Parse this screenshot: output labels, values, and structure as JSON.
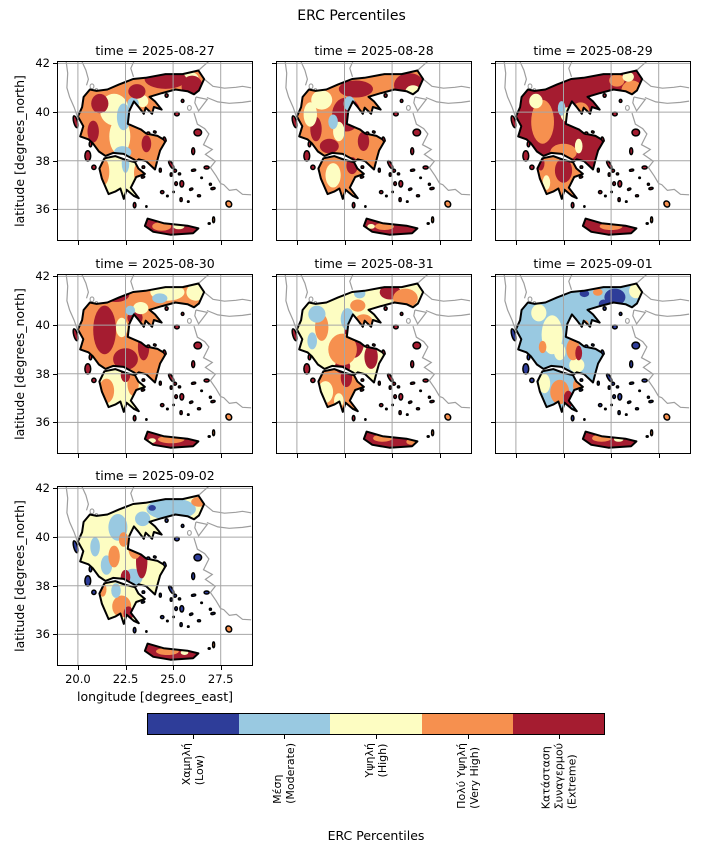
{
  "title": "ERC Percentiles",
  "chart_data": {
    "type": "heatmap",
    "suptitle": "ERC Percentiles",
    "xlabel": "longitude [degrees_east]",
    "ylabel": "latitude [degrees_north]",
    "xticks": [
      20.0,
      22.5,
      25.0,
      27.5
    ],
    "yticks": [
      42,
      40,
      38,
      36
    ],
    "xtick_labels": [
      "20.0",
      "22.5",
      "25.0",
      "27.5"
    ],
    "ytick_labels": [
      "42",
      "40",
      "38",
      "36"
    ],
    "xlim": [
      18.9,
      29.2
    ],
    "ylim": [
      34.7,
      42.1
    ],
    "grid": true,
    "colorbar_label": "ERC Percentiles",
    "categories": [
      {
        "code": "L",
        "label": "Χαμηλή\n(Low)",
        "english": "Low",
        "color": "#2e3d99"
      },
      {
        "code": "M",
        "label": "Μέση\n(Moderate)",
        "english": "Moderate",
        "color": "#99c9e1"
      },
      {
        "code": "H",
        "label": "Υψηλή\n(High)",
        "english": "High",
        "color": "#fdfdc2"
      },
      {
        "code": "VH",
        "label": "Πολύ Υψηλή\n(Very High)",
        "english": "Very High",
        "color": "#f6904f"
      },
      {
        "code": "EX",
        "label": "Κατάσταση\nΣυναγερμού\n(Extreme)",
        "english": "Extreme",
        "color": "#a51c30"
      }
    ],
    "facets": [
      {
        "date": "2025-08-27",
        "title": "time = 2025-08-27",
        "base": "VH",
        "pel": "H",
        "crete": "EX",
        "islands": "EX",
        "patches": [
          [
            "H",
            21.9,
            40.1,
            0.75,
            0.65
          ],
          [
            "H",
            22.2,
            39.0,
            0.55,
            0.75
          ],
          [
            "H",
            25.9,
            41.35,
            0.45,
            0.3
          ],
          [
            "H",
            23.4,
            40.45,
            0.3,
            0.25
          ],
          [
            "M",
            22.4,
            39.8,
            0.35,
            0.55
          ],
          [
            "M",
            22.9,
            40.35,
            0.3,
            0.25
          ],
          [
            "M",
            22.35,
            38.35,
            0.45,
            0.25
          ],
          [
            "EX",
            21.15,
            40.35,
            0.45,
            0.4
          ],
          [
            "EX",
            24.6,
            41.35,
            1.1,
            0.4
          ],
          [
            "EX",
            26.0,
            41.05,
            0.55,
            0.45
          ],
          [
            "EX",
            23.1,
            40.85,
            0.45,
            0.3
          ],
          [
            "EX",
            20.8,
            39.2,
            0.3,
            0.45
          ],
          [
            "EX",
            23.6,
            38.7,
            0.25,
            0.35
          ],
          [
            "VH",
            21.35,
            37.55,
            0.3,
            0.55
          ],
          [
            "VH",
            23.2,
            37.5,
            0.25,
            0.45
          ],
          [
            "M",
            22.5,
            37.9,
            0.2,
            0.4
          ],
          [
            "VH",
            24.4,
            35.3,
            0.5,
            0.18
          ],
          [
            "H",
            25.3,
            35.3,
            0.3,
            0.12
          ]
        ]
      },
      {
        "date": "2025-08-28",
        "title": "time = 2025-08-28",
        "base": "VH",
        "pel": "VH",
        "crete": "EX",
        "islands": "EX",
        "patches": [
          [
            "EX",
            22.6,
            39.9,
            0.75,
            0.7
          ],
          [
            "EX",
            23.1,
            40.95,
            0.9,
            0.35
          ],
          [
            "EX",
            25.9,
            41.1,
            0.8,
            0.5
          ],
          [
            "EX",
            21.0,
            39.3,
            0.3,
            0.5
          ],
          [
            "EX",
            21.7,
            38.6,
            0.5,
            0.3
          ],
          [
            "EX",
            23.5,
            38.8,
            0.3,
            0.4
          ],
          [
            "H",
            21.3,
            40.5,
            0.55,
            0.4
          ],
          [
            "H",
            20.7,
            39.9,
            0.35,
            0.5
          ],
          [
            "H",
            26.1,
            40.85,
            0.4,
            0.25
          ],
          [
            "H",
            22.2,
            39.2,
            0.3,
            0.4
          ],
          [
            "M",
            22.75,
            40.35,
            0.3,
            0.3
          ],
          [
            "M",
            21.9,
            39.6,
            0.25,
            0.3
          ],
          [
            "H",
            21.9,
            37.4,
            0.4,
            0.5
          ],
          [
            "EX",
            22.9,
            37.8,
            0.3,
            0.35
          ],
          [
            "VH",
            24.6,
            35.3,
            0.5,
            0.15
          ],
          [
            "H",
            23.9,
            35.3,
            0.2,
            0.1
          ]
        ]
      },
      {
        "date": "2025-08-29",
        "title": "time = 2025-08-29",
        "base": "EX",
        "pel": "VH",
        "crete": "EX",
        "islands": "EX",
        "patches": [
          [
            "VH",
            21.4,
            39.6,
            0.6,
            0.9
          ],
          [
            "VH",
            22.5,
            38.35,
            0.7,
            0.35
          ],
          [
            "VH",
            26.1,
            40.9,
            0.55,
            0.4
          ],
          [
            "VH",
            23.4,
            40.05,
            0.45,
            0.35
          ],
          [
            "VH",
            25.3,
            41.3,
            0.4,
            0.25
          ],
          [
            "H",
            21.05,
            40.45,
            0.35,
            0.3
          ],
          [
            "H",
            22.7,
            39.9,
            0.35,
            0.3
          ],
          [
            "H",
            25.9,
            41.45,
            0.3,
            0.2
          ],
          [
            "H",
            23.3,
            38.6,
            0.2,
            0.3
          ],
          [
            "M",
            22.4,
            40.15,
            0.2,
            0.3
          ],
          [
            "EX",
            22.5,
            37.6,
            0.45,
            0.5
          ],
          [
            "EX",
            21.3,
            37.9,
            0.2,
            0.3
          ],
          [
            "H",
            21.6,
            37.1,
            0.2,
            0.3
          ],
          [
            "VH",
            25.0,
            35.3,
            0.6,
            0.15
          ]
        ]
      },
      {
        "date": "2025-08-30",
        "title": "time = 2025-08-30",
        "base": "VH",
        "pel": "H",
        "crete": "EX",
        "islands": "EX",
        "patches": [
          [
            "EX",
            21.4,
            39.8,
            0.6,
            1.0
          ],
          [
            "EX",
            22.5,
            38.6,
            0.65,
            0.45
          ],
          [
            "EX",
            22.0,
            41.25,
            0.7,
            0.3
          ],
          [
            "EX",
            23.45,
            39.1,
            0.3,
            0.55
          ],
          [
            "EX",
            23.0,
            40.3,
            0.4,
            0.3
          ],
          [
            "H",
            24.7,
            41.35,
            0.9,
            0.35
          ],
          [
            "H",
            26.2,
            41.35,
            0.5,
            0.35
          ],
          [
            "H",
            23.3,
            40.7,
            0.4,
            0.25
          ],
          [
            "H",
            22.3,
            39.9,
            0.3,
            0.4
          ],
          [
            "M",
            24.3,
            41.1,
            0.4,
            0.2
          ],
          [
            "M",
            22.75,
            40.6,
            0.25,
            0.2
          ],
          [
            "VH",
            21.5,
            37.3,
            0.4,
            0.5
          ],
          [
            "VH",
            22.9,
            37.6,
            0.3,
            0.5
          ],
          [
            "EX",
            22.5,
            37.95,
            0.25,
            0.3
          ],
          [
            "VH",
            24.9,
            35.3,
            0.7,
            0.16
          ],
          [
            "H",
            23.9,
            35.25,
            0.2,
            0.1
          ]
        ]
      },
      {
        "date": "2025-08-31",
        "title": "time = 2025-08-31",
        "base": "H",
        "pel": "VH",
        "crete": "EX",
        "islands": "EX",
        "patches": [
          [
            "EX",
            23.0,
            39.4,
            0.55,
            0.75
          ],
          [
            "EX",
            23.9,
            38.7,
            0.35,
            0.5
          ],
          [
            "EX",
            24.9,
            41.35,
            0.55,
            0.3
          ],
          [
            "EX",
            22.4,
            38.3,
            0.4,
            0.3
          ],
          [
            "VH",
            22.4,
            39.0,
            0.75,
            0.65
          ],
          [
            "VH",
            23.5,
            40.0,
            0.55,
            0.45
          ],
          [
            "VH",
            21.3,
            39.9,
            0.35,
            0.55
          ],
          [
            "VH",
            25.7,
            41.1,
            0.65,
            0.4
          ],
          [
            "VH",
            23.2,
            40.8,
            0.4,
            0.25
          ],
          [
            "M",
            21.05,
            40.45,
            0.45,
            0.35
          ],
          [
            "M",
            22.65,
            40.25,
            0.35,
            0.45
          ],
          [
            "M",
            20.8,
            39.35,
            0.25,
            0.35
          ],
          [
            "M",
            23.3,
            41.3,
            0.3,
            0.2
          ],
          [
            "H",
            21.5,
            37.25,
            0.4,
            0.45
          ],
          [
            "EX",
            22.6,
            37.85,
            0.3,
            0.4
          ],
          [
            "H",
            22.2,
            36.9,
            0.25,
            0.3
          ],
          [
            "VH",
            24.5,
            35.35,
            0.5,
            0.15
          ],
          [
            "VH",
            26.0,
            35.2,
            0.25,
            0.12
          ]
        ]
      },
      {
        "date": "2025-09-01",
        "title": "time = 2025-09-01",
        "base": "M",
        "pel": "M",
        "crete": "EX",
        "islands": "L",
        "patches": [
          [
            "H",
            21.9,
            39.6,
            0.55,
            0.8
          ],
          [
            "H",
            23.2,
            38.35,
            0.4,
            0.3
          ],
          [
            "H",
            21.2,
            40.5,
            0.4,
            0.35
          ],
          [
            "H",
            26.3,
            41.4,
            0.35,
            0.3
          ],
          [
            "H",
            22.3,
            38.9,
            0.3,
            0.35
          ],
          [
            "L",
            25.2,
            41.15,
            0.55,
            0.35
          ],
          [
            "L",
            24.6,
            40.85,
            0.25,
            0.2
          ],
          [
            "L",
            23.6,
            41.3,
            0.25,
            0.15
          ],
          [
            "VH",
            23.0,
            39.0,
            0.35,
            0.45
          ],
          [
            "VH",
            23.65,
            39.95,
            0.2,
            0.25
          ],
          [
            "VH",
            21.4,
            39.1,
            0.2,
            0.25
          ],
          [
            "VH",
            24.3,
            41.35,
            0.25,
            0.15
          ],
          [
            "EX",
            23.3,
            38.85,
            0.18,
            0.3
          ],
          [
            "VH",
            22.3,
            37.25,
            0.5,
            0.5
          ],
          [
            "EX",
            22.75,
            36.95,
            0.25,
            0.35
          ],
          [
            "H",
            21.5,
            37.6,
            0.3,
            0.4
          ],
          [
            "VH",
            23.2,
            37.5,
            0.2,
            0.3
          ],
          [
            "VH",
            24.5,
            35.35,
            0.5,
            0.15
          ],
          [
            "H",
            25.4,
            35.3,
            0.25,
            0.1
          ]
        ]
      },
      {
        "date": "2025-09-02",
        "title": "time = 2025-09-02",
        "base": "H",
        "pel": "H",
        "crete": "EX",
        "islands": "L",
        "patches": [
          [
            "M",
            24.9,
            41.15,
            1.3,
            0.45
          ],
          [
            "M",
            22.1,
            40.4,
            0.5,
            0.55
          ],
          [
            "M",
            22.9,
            38.35,
            0.5,
            0.35
          ],
          [
            "M",
            21.5,
            38.85,
            0.3,
            0.4
          ],
          [
            "M",
            23.4,
            40.75,
            0.4,
            0.3
          ],
          [
            "M",
            20.9,
            39.6,
            0.25,
            0.4
          ],
          [
            "EX",
            23.35,
            39.0,
            0.3,
            0.7
          ],
          [
            "EX",
            22.5,
            38.35,
            0.25,
            0.3
          ],
          [
            "EX",
            23.0,
            40.0,
            0.2,
            0.3
          ],
          [
            "VH",
            23.0,
            39.55,
            0.35,
            0.45
          ],
          [
            "VH",
            21.9,
            39.2,
            0.3,
            0.45
          ],
          [
            "VH",
            26.35,
            41.45,
            0.4,
            0.2
          ],
          [
            "VH",
            22.4,
            39.9,
            0.25,
            0.3
          ],
          [
            "L",
            23.9,
            41.2,
            0.2,
            0.12
          ],
          [
            "VH",
            22.3,
            37.15,
            0.5,
            0.45
          ],
          [
            "EX",
            22.65,
            36.85,
            0.25,
            0.3
          ],
          [
            "VH",
            21.3,
            37.85,
            0.2,
            0.3
          ],
          [
            "M",
            22.0,
            37.8,
            0.25,
            0.3
          ],
          [
            "VH",
            24.7,
            35.3,
            0.6,
            0.15
          ],
          [
            "H",
            25.6,
            35.25,
            0.2,
            0.1
          ]
        ]
      }
    ]
  }
}
